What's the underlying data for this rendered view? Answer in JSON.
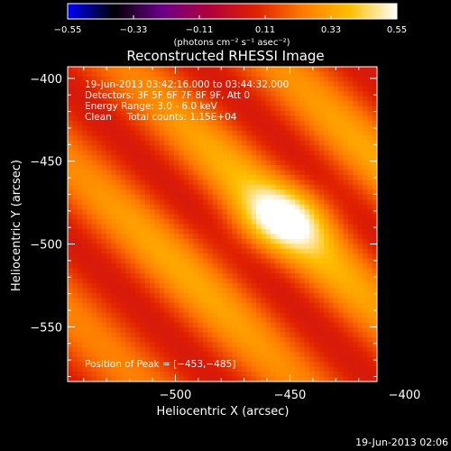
{
  "chart_data": {
    "type": "heatmap",
    "title": "Reconstructed RHESSI Image",
    "xlabel": "Heliocentric X (arcsec)",
    "ylabel": "Heliocentric Y (arcsec)",
    "xlim": [
      -547,
      -412
    ],
    "ylim": [
      -583,
      -393
    ],
    "xticks": [
      -500,
      -450,
      -400
    ],
    "yticks": [
      -400,
      -450,
      -500,
      -550
    ],
    "colorbar": {
      "ticks": [
        -0.55,
        -0.33,
        -0.11,
        0.11,
        0.33,
        0.55
      ],
      "tick_labels": [
        "-0.55",
        "-0.33",
        "-0.11",
        "0.11",
        "0.33",
        "0.55"
      ],
      "range": [
        -0.55,
        0.55
      ],
      "label": "(photons cm⁻² s⁻¹ asec⁻²)"
    },
    "colormap_stops": [
      "#0000ff",
      "#000000",
      "#6a0088",
      "#b0003a",
      "#e02000",
      "#ff7a00",
      "#ffc000",
      "#ffffff"
    ],
    "peak": [
      -453,
      -485
    ],
    "grid": false
  },
  "annotations": {
    "time_range": "19-Jun-2013 03:42:16.000 to 03:44:32.000",
    "detectors": "Detectors: 3F 5F 6F 7F 8F 9F, Att 0",
    "energy_range": "Energy Range: 3.0 - 6.0 keV",
    "clean_counts": "Clean     Total counts: 1.15E+04",
    "peak_position": "Position of Peak = [-453,-485]"
  },
  "footer": {
    "timestamp": "19-Jun-2013 02:06"
  }
}
